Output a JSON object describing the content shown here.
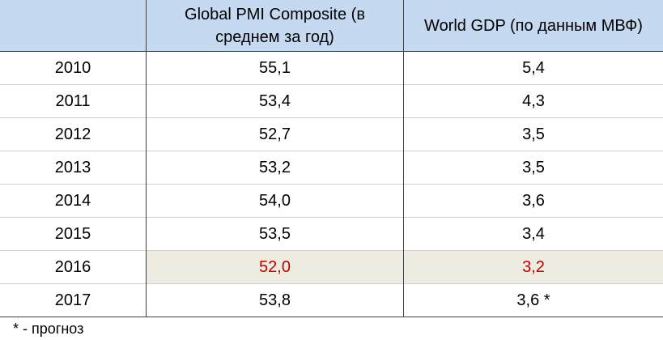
{
  "table": {
    "header": [
      "Global PMI Composite (в среднем за год)",
      "World GDP (по данным МВФ)"
    ],
    "rows": [
      [
        "2010",
        "55,1",
        "5,4"
      ],
      [
        "2011",
        "53,4",
        "4,3"
      ],
      [
        "2012",
        "52,7",
        "3,5"
      ],
      [
        "2013",
        "53,2",
        "3,5"
      ],
      [
        "2014",
        "54,0",
        "3,6"
      ],
      [
        "2015",
        "53,5",
        "3,4"
      ],
      [
        "2016",
        "52,0",
        "3,2"
      ],
      [
        "2017",
        "53,8",
        "3,6 *"
      ]
    ]
  },
  "footnote": "* - прогноз"
}
